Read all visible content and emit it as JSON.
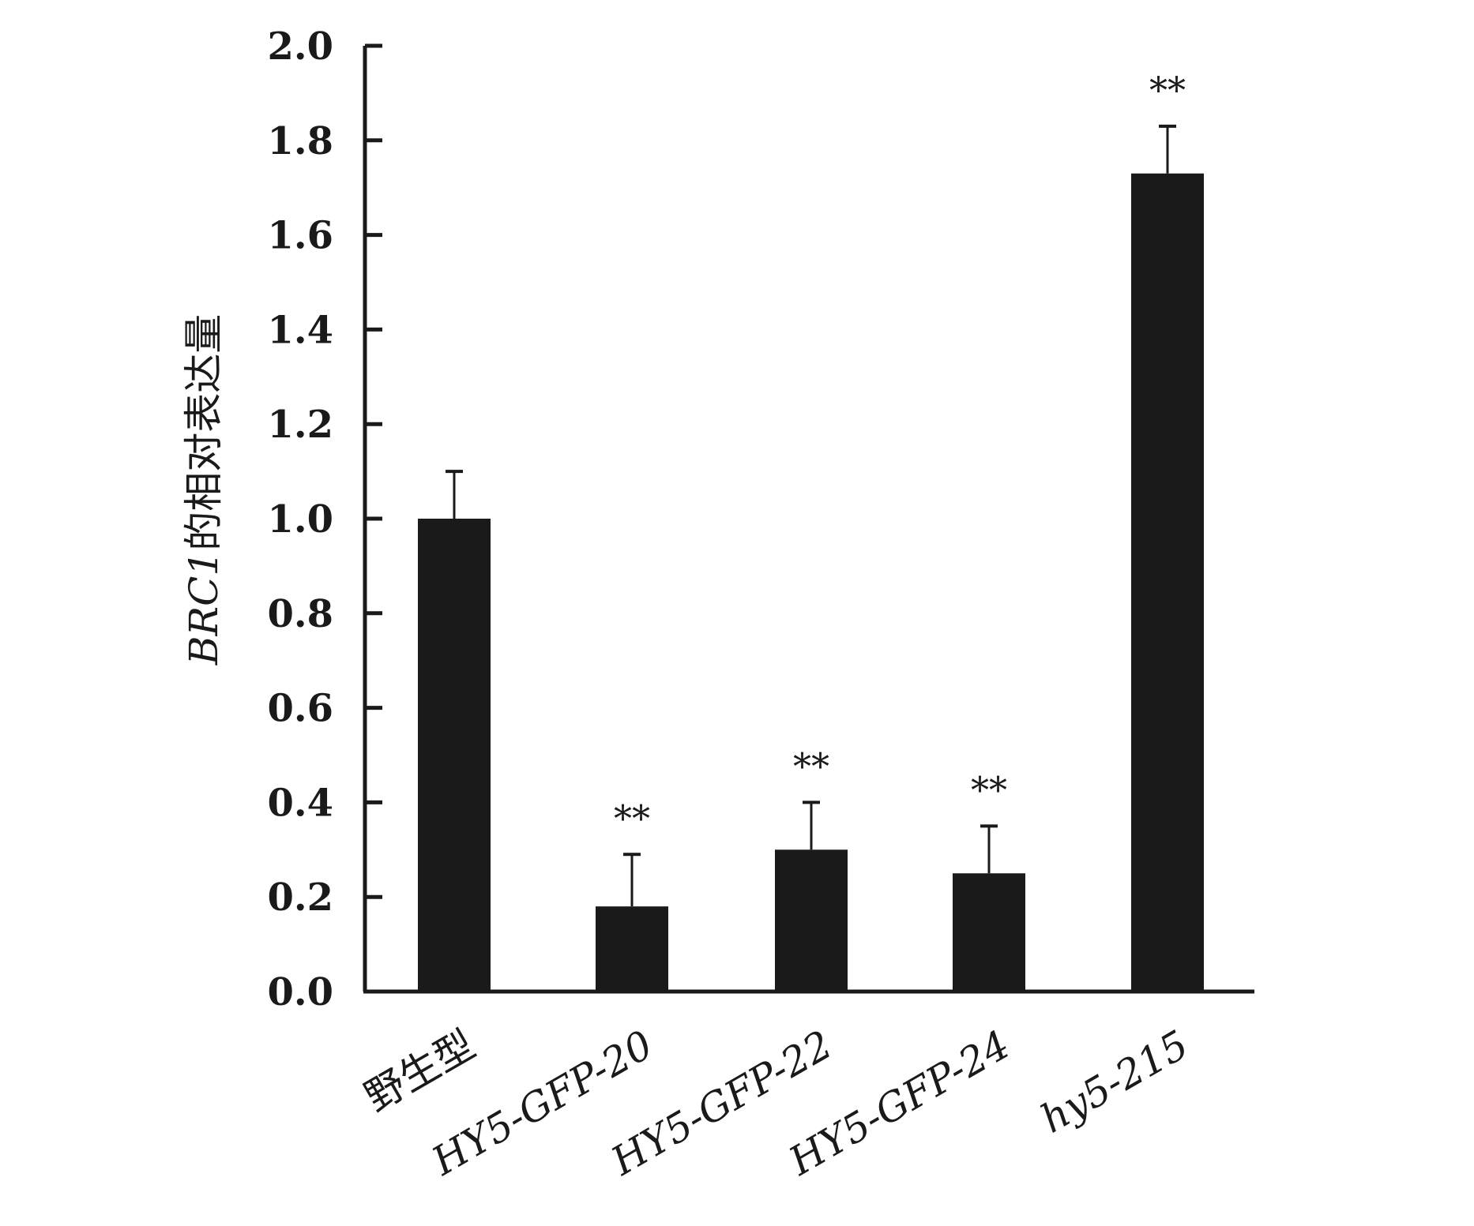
{
  "chart_data": {
    "type": "bar",
    "ylabel": "BRC1的相对表达量",
    "ylabel_parts": [
      {
        "text": "BRC1",
        "italic": true
      },
      {
        "text": "的相对表达量",
        "italic": false
      }
    ],
    "ylim": [
      0.0,
      2.0
    ],
    "yticks": [
      "0.0",
      "0.2",
      "0.4",
      "0.6",
      "0.8",
      "1.0",
      "1.2",
      "1.4",
      "1.6",
      "1.8",
      "2.0"
    ],
    "categories": [
      "野生型",
      "HY5-GFP-20",
      "HY5-GFP-22",
      "HY5-GFP-24",
      "hy5-215"
    ],
    "category_italic": [
      false,
      true,
      true,
      true,
      true
    ],
    "values": [
      1.0,
      0.18,
      0.3,
      0.25,
      1.73
    ],
    "errors": [
      0.1,
      0.11,
      0.1,
      0.1,
      0.1
    ],
    "significance": [
      "",
      "**",
      "**",
      "**",
      "**"
    ],
    "bar_color": "#1a1a1a",
    "grid": false,
    "legend": "none"
  }
}
